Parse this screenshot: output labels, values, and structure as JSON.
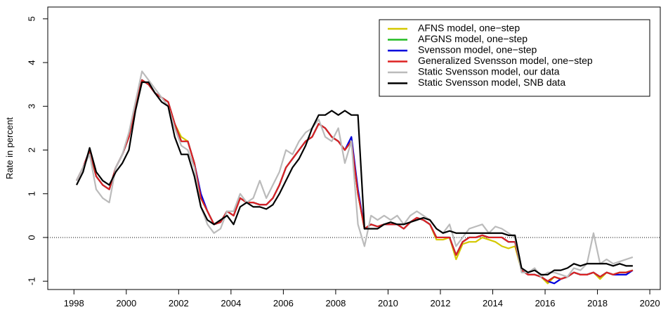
{
  "chart_data": {
    "type": "line",
    "ylabel": "Rate in percent",
    "xlim": [
      1997.0,
      2020.4
    ],
    "ylim": [
      -1.19,
      5.27
    ],
    "xticks": [
      1998,
      2000,
      2002,
      2004,
      2006,
      2008,
      2010,
      2012,
      2014,
      2016,
      2018,
      2020
    ],
    "yticks": [
      -1,
      0,
      1,
      2,
      3,
      4,
      5
    ],
    "hline": 0,
    "legend": "topright",
    "x": [
      1998.1,
      1998.35,
      1998.6,
      1998.85,
      1999.1,
      1999.35,
      1999.6,
      1999.85,
      2000.1,
      2000.35,
      2000.6,
      2000.85,
      2001.1,
      2001.35,
      2001.6,
      2001.85,
      2002.1,
      2002.35,
      2002.6,
      2002.85,
      2003.1,
      2003.35,
      2003.6,
      2003.85,
      2004.1,
      2004.35,
      2004.6,
      2004.85,
      2005.1,
      2005.35,
      2005.6,
      2005.85,
      2006.1,
      2006.35,
      2006.6,
      2006.85,
      2007.1,
      2007.35,
      2007.6,
      2007.85,
      2008.1,
      2008.35,
      2008.6,
      2008.85,
      2009.1,
      2009.35,
      2009.6,
      2009.85,
      2010.1,
      2010.35,
      2010.6,
      2010.85,
      2011.1,
      2011.35,
      2011.6,
      2011.85,
      2012.1,
      2012.35,
      2012.6,
      2012.85,
      2013.1,
      2013.35,
      2013.6,
      2013.85,
      2014.1,
      2014.35,
      2014.6,
      2014.85,
      2015.1,
      2015.35,
      2015.6,
      2015.85,
      2016.1,
      2016.35,
      2016.6,
      2016.85,
      2017.1,
      2017.35,
      2017.6,
      2017.85,
      2018.1,
      2018.35,
      2018.6,
      2018.85,
      2019.1,
      2019.35
    ],
    "series": [
      {
        "name": "AFNS model, one−step",
        "color": "#d4c800",
        "values": [
          1.3,
          1.6,
          1.95,
          1.4,
          1.2,
          1.1,
          1.6,
          1.9,
          2.3,
          3.0,
          3.6,
          3.5,
          3.3,
          3.2,
          3.1,
          2.6,
          2.3,
          2.2,
          1.7,
          0.9,
          0.6,
          0.3,
          0.35,
          0.6,
          0.5,
          0.9,
          0.8,
          0.8,
          0.75,
          0.75,
          0.9,
          1.2,
          1.6,
          1.8,
          2.0,
          2.2,
          2.3,
          2.6,
          2.5,
          2.3,
          2.2,
          2.0,
          2.2,
          1.0,
          0.2,
          0.3,
          0.25,
          0.3,
          0.3,
          0.3,
          0.2,
          0.35,
          0.45,
          0.4,
          0.3,
          -0.05,
          -0.05,
          0.0,
          -0.5,
          -0.15,
          -0.1,
          -0.1,
          0.0,
          -0.05,
          -0.1,
          -0.2,
          -0.25,
          -0.2,
          -0.75,
          -0.85,
          -0.85,
          -0.9,
          -1.05,
          -0.9,
          -0.95,
          -0.9,
          -0.8,
          -0.85,
          -0.85,
          -0.8,
          -0.95,
          -0.8,
          -0.85,
          -0.8,
          -0.8,
          -0.75
        ]
      },
      {
        "name": "AFGNS model, one−step",
        "color": "#22bb22",
        "values": [
          1.3,
          1.6,
          2.0,
          1.4,
          1.2,
          1.1,
          1.6,
          1.9,
          2.3,
          3.0,
          3.6,
          3.5,
          3.3,
          3.2,
          3.1,
          2.6,
          2.2,
          2.2,
          1.7,
          0.9,
          0.6,
          0.3,
          0.35,
          0.6,
          0.5,
          0.9,
          0.8,
          0.8,
          0.75,
          0.75,
          0.9,
          1.2,
          1.6,
          1.8,
          2.0,
          2.2,
          2.3,
          2.6,
          2.5,
          2.3,
          2.2,
          2.0,
          2.2,
          1.0,
          0.2,
          0.3,
          0.25,
          0.3,
          0.3,
          0.3,
          0.2,
          0.35,
          0.45,
          0.4,
          0.3,
          0.0,
          0.0,
          0.0,
          -0.4,
          -0.1,
          0.0,
          0.0,
          0.05,
          0.0,
          0.0,
          0.0,
          -0.1,
          -0.1,
          -0.75,
          -0.85,
          -0.85,
          -0.9,
          -1.0,
          -0.9,
          -0.95,
          -0.9,
          -0.8,
          -0.85,
          -0.85,
          -0.8,
          -0.9,
          -0.8,
          -0.85,
          -0.8,
          -0.8,
          -0.75
        ]
      },
      {
        "name": "Svensson model, one−step",
        "color": "#0000dd",
        "values": [
          1.3,
          1.6,
          2.0,
          1.4,
          1.2,
          1.1,
          1.6,
          1.9,
          2.3,
          3.0,
          3.6,
          3.5,
          3.3,
          3.2,
          3.1,
          2.6,
          2.2,
          2.2,
          1.7,
          1.0,
          0.6,
          0.3,
          0.35,
          0.6,
          0.5,
          0.9,
          0.8,
          0.8,
          0.75,
          0.75,
          0.9,
          1.2,
          1.6,
          1.8,
          2.0,
          2.2,
          2.3,
          2.6,
          2.5,
          2.3,
          2.2,
          2.0,
          2.3,
          1.1,
          0.2,
          0.3,
          0.25,
          0.3,
          0.3,
          0.3,
          0.2,
          0.35,
          0.45,
          0.4,
          0.3,
          0.0,
          0.0,
          0.0,
          -0.4,
          -0.1,
          0.0,
          0.0,
          0.05,
          0.0,
          0.0,
          0.0,
          -0.1,
          -0.1,
          -0.75,
          -0.85,
          -0.85,
          -0.9,
          -1.0,
          -1.05,
          -0.95,
          -0.9,
          -0.8,
          -0.85,
          -0.85,
          -0.8,
          -0.9,
          -0.8,
          -0.85,
          -0.85,
          -0.85,
          -0.75
        ]
      },
      {
        "name": "Generalized Svensson model, one−step",
        "color": "#dd2222",
        "values": [
          1.3,
          1.6,
          2.0,
          1.4,
          1.2,
          1.1,
          1.6,
          1.9,
          2.3,
          3.0,
          3.6,
          3.5,
          3.3,
          3.2,
          3.1,
          2.6,
          2.2,
          2.2,
          1.7,
          0.9,
          0.6,
          0.3,
          0.35,
          0.6,
          0.5,
          0.9,
          0.8,
          0.8,
          0.75,
          0.75,
          0.9,
          1.2,
          1.6,
          1.8,
          2.0,
          2.2,
          2.3,
          2.6,
          2.5,
          2.3,
          2.2,
          2.0,
          2.2,
          1.0,
          0.2,
          0.3,
          0.25,
          0.3,
          0.3,
          0.3,
          0.2,
          0.35,
          0.45,
          0.4,
          0.3,
          0.0,
          0.0,
          0.0,
          -0.4,
          -0.1,
          0.0,
          0.0,
          0.05,
          0.0,
          0.0,
          0.0,
          -0.1,
          -0.1,
          -0.75,
          -0.85,
          -0.85,
          -0.9,
          -1.0,
          -0.9,
          -0.95,
          -0.9,
          -0.8,
          -0.85,
          -0.85,
          -0.8,
          -0.9,
          -0.8,
          -0.85,
          -0.8,
          -0.8,
          -0.75
        ]
      },
      {
        "name": "Static Svensson model, our data",
        "color": "#bbbbbb",
        "values": [
          1.3,
          1.6,
          1.9,
          1.1,
          0.9,
          0.8,
          1.6,
          1.9,
          2.4,
          3.1,
          3.8,
          3.6,
          3.4,
          3.2,
          3.0,
          2.5,
          2.1,
          2.0,
          1.6,
          0.7,
          0.3,
          0.1,
          0.2,
          0.6,
          0.6,
          1.0,
          0.8,
          0.9,
          1.3,
          0.9,
          1.2,
          1.5,
          2.0,
          1.9,
          2.2,
          2.4,
          2.5,
          2.7,
          2.3,
          2.2,
          2.5,
          1.7,
          2.2,
          0.3,
          -0.2,
          0.5,
          0.4,
          0.5,
          0.4,
          0.5,
          0.3,
          0.5,
          0.6,
          0.5,
          0.4,
          0.2,
          0.1,
          0.3,
          -0.2,
          0.0,
          0.2,
          0.25,
          0.3,
          0.1,
          0.25,
          0.2,
          0.1,
          0.0,
          -0.8,
          -0.8,
          -0.7,
          -0.9,
          -0.8,
          -0.8,
          -0.85,
          -0.9,
          -0.7,
          -0.75,
          -0.6,
          0.1,
          -0.6,
          -0.5,
          -0.6,
          -0.55,
          -0.5,
          -0.45
        ]
      },
      {
        "name": "Static Svensson model, SNB data",
        "color": "#000000",
        "values": [
          1.2,
          1.5,
          2.05,
          1.5,
          1.3,
          1.2,
          1.5,
          1.7,
          2.0,
          2.9,
          3.55,
          3.55,
          3.3,
          3.1,
          3.0,
          2.3,
          1.9,
          1.9,
          1.4,
          0.7,
          0.4,
          0.3,
          0.4,
          0.5,
          0.3,
          0.7,
          0.8,
          0.7,
          0.7,
          0.65,
          0.75,
          1.0,
          1.3,
          1.6,
          1.8,
          2.1,
          2.5,
          2.8,
          2.8,
          2.9,
          2.8,
          2.9,
          2.8,
          2.8,
          0.2,
          0.2,
          0.2,
          0.3,
          0.35,
          0.3,
          0.3,
          0.35,
          0.4,
          0.45,
          0.4,
          0.2,
          0.1,
          0.15,
          0.1,
          0.1,
          0.1,
          0.1,
          0.1,
          0.1,
          0.1,
          0.1,
          0.05,
          0.05,
          -0.7,
          -0.8,
          -0.75,
          -0.85,
          -0.85,
          -0.75,
          -0.75,
          -0.7,
          -0.6,
          -0.65,
          -0.6,
          -0.6,
          -0.6,
          -0.6,
          -0.65,
          -0.6,
          -0.65,
          -0.65
        ]
      }
    ]
  }
}
